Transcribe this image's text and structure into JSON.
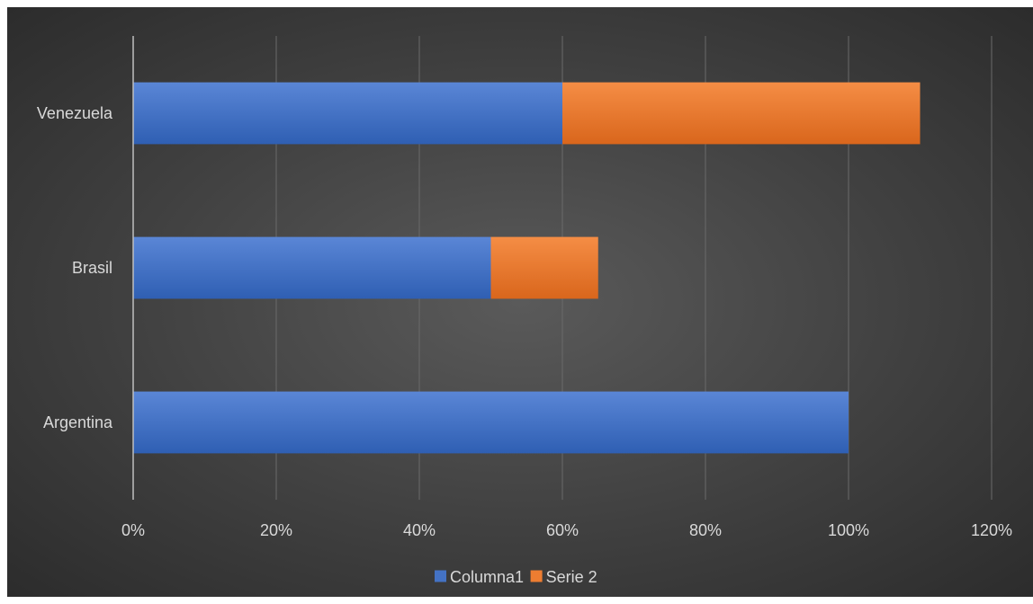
{
  "chart_data": {
    "type": "bar",
    "orientation": "horizontal",
    "stacked": true,
    "categories": [
      "Argentina",
      "Brasil",
      "Venezuela"
    ],
    "series": [
      {
        "name": "Columna1",
        "values": [
          1.0,
          0.5,
          0.6
        ],
        "color": "#4472C4"
      },
      {
        "name": "Serie 2",
        "values": [
          0.0,
          0.15,
          0.5
        ],
        "color": "#ED7D31"
      }
    ],
    "xlim": [
      0,
      1.2
    ],
    "x_ticks": [
      0,
      0.2,
      0.4,
      0.6,
      0.8,
      1.0,
      1.2
    ],
    "x_tick_labels": [
      "0%",
      "20%",
      "40%",
      "60%",
      "80%",
      "100%",
      "120%"
    ],
    "title": "",
    "xlabel": "",
    "ylabel": "",
    "grid": true,
    "legend_position": "bottom",
    "background": "#404040"
  }
}
